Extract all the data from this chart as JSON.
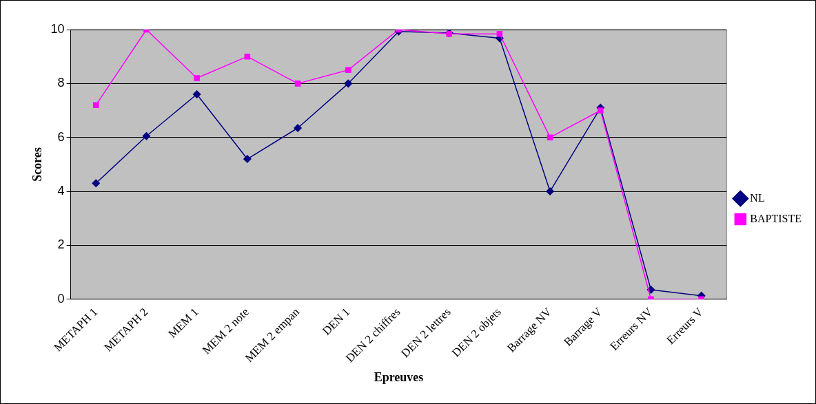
{
  "chart_data": {
    "type": "line",
    "xlabel": "Epreuves",
    "ylabel": "Scores",
    "categories": [
      "METAPH 1",
      "METAPH 2",
      "MEM 1",
      "MEM 2 note",
      "MEM 2 empan",
      "DEN 1",
      "DEN 2 chiffres",
      "DEN 2 lettres",
      "DEN 2 objets",
      "Barrage NV",
      "Barrage V",
      "Erreurs NV",
      "Erreurs V"
    ],
    "series": [
      {
        "name": "NL",
        "color": "#000080",
        "marker": "diamond",
        "values": [
          4.3,
          6.05,
          7.6,
          5.2,
          6.35,
          8.0,
          9.93,
          9.87,
          9.68,
          4.0,
          7.1,
          0.35,
          0.13
        ]
      },
      {
        "name": "BAPTISTE",
        "color": "#ff00ff",
        "marker": "square",
        "values": [
          7.2,
          10,
          8.2,
          9.0,
          8.0,
          8.5,
          10,
          9.84,
          9.84,
          6.0,
          7.0,
          0,
          0
        ]
      }
    ],
    "ylim": [
      0,
      10
    ],
    "yticks": [
      0,
      2,
      4,
      6,
      8,
      10
    ],
    "grid": "y",
    "legend": "right",
    "line_style": "solid"
  }
}
